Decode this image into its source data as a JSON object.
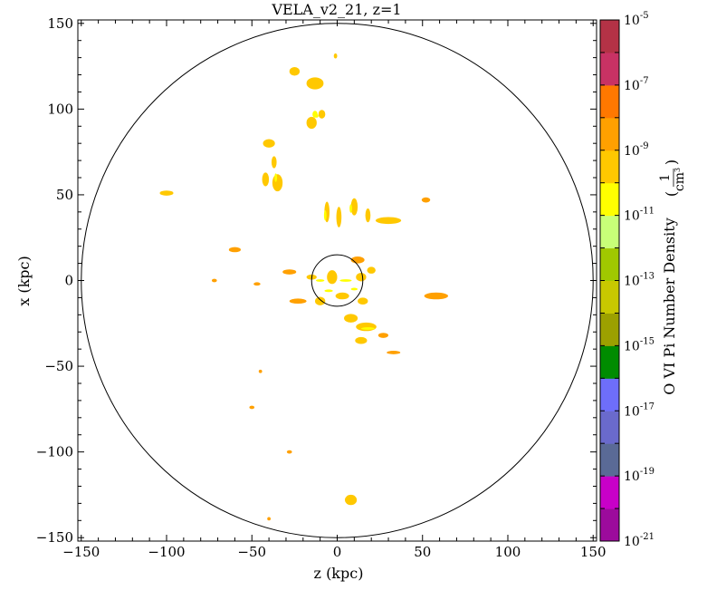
{
  "chart_data": {
    "type": "heatmap",
    "title": "VELA_v2_21, z=1",
    "xlabel": "z  (kpc)",
    "ylabel": "x  (kpc)",
    "xlim": [
      -152,
      152
    ],
    "ylim": [
      -152,
      152
    ],
    "x_ticks": [
      -150,
      -100,
      -50,
      0,
      50,
      100,
      150
    ],
    "y_ticks": [
      150,
      100,
      50,
      0,
      -50,
      -100,
      -150
    ],
    "x_tick_labels": [
      "−150",
      "−100",
      "−50",
      "0",
      "50",
      "100",
      "150"
    ],
    "y_tick_labels": [
      "150",
      "100",
      "50",
      "0",
      "−50",
      "−100",
      "−150"
    ],
    "circles_kpc": [
      {
        "name": "outer",
        "cx": 0,
        "cy": 0,
        "r": 150
      },
      {
        "name": "inner",
        "cx": 0,
        "cy": 0,
        "r": 15
      }
    ],
    "colorbar": {
      "label": "O VI Pi Number Density",
      "unit_numerator": "1",
      "unit_denominator": "cm",
      "unit_exponent": "3",
      "scale": "log",
      "range": [
        -21,
        -5
      ],
      "bands": [
        {
          "from": -21,
          "to": -20,
          "color": "#9c0b9c"
        },
        {
          "from": -20,
          "to": -19,
          "color": "#c800c8"
        },
        {
          "from": -19,
          "to": -18,
          "color": "#5a6a96"
        },
        {
          "from": -18,
          "to": -17,
          "color": "#6a6acc"
        },
        {
          "from": -17,
          "to": -16,
          "color": "#6e6efa"
        },
        {
          "from": -16,
          "to": -15,
          "color": "#008c00"
        },
        {
          "from": -15,
          "to": -14,
          "color": "#9ca000"
        },
        {
          "from": -14,
          "to": -13,
          "color": "#c8c800"
        },
        {
          "from": -13,
          "to": -12,
          "color": "#a0c800"
        },
        {
          "from": -12,
          "to": -11,
          "color": "#c8ff78"
        },
        {
          "from": -11,
          "to": -10,
          "color": "#ffff00"
        },
        {
          "from": -10,
          "to": -9,
          "color": "#ffc800"
        },
        {
          "from": -9,
          "to": -8,
          "color": "#ffa000"
        },
        {
          "from": -8,
          "to": -7,
          "color": "#ff7800"
        },
        {
          "from": -7,
          "to": -6,
          "color": "#c83264"
        },
        {
          "from": -6,
          "to": -5,
          "color": "#b43246"
        }
      ],
      "ticks": [
        {
          "base": "10",
          "exp": "-5",
          "value": -5
        },
        {
          "base": "10",
          "exp": "-7",
          "value": -7
        },
        {
          "base": "10",
          "exp": "-9",
          "value": -9
        },
        {
          "base": "10",
          "exp": "-11",
          "value": -11
        },
        {
          "base": "10",
          "exp": "-13",
          "value": -13
        },
        {
          "base": "10",
          "exp": "-15",
          "value": -15
        },
        {
          "base": "10",
          "exp": "-17",
          "value": -17
        },
        {
          "base": "10",
          "exp": "-19",
          "value": -19
        },
        {
          "base": "10",
          "exp": "-21",
          "value": -21
        }
      ]
    },
    "blobs": [
      {
        "z": -25,
        "x": 122,
        "w": 6,
        "h": 5,
        "color": "#ffc800"
      },
      {
        "z": -13,
        "x": 115,
        "w": 10,
        "h": 7,
        "color": "#ffc800"
      },
      {
        "z": -1,
        "x": 131,
        "w": 2,
        "h": 3,
        "color": "#ffc800"
      },
      {
        "z": -15,
        "x": 92,
        "w": 6,
        "h": 7,
        "color": "#ffc800"
      },
      {
        "z": -9,
        "x": 97,
        "w": 4,
        "h": 5,
        "color": "#ffc800"
      },
      {
        "z": -13,
        "x": 97,
        "w": 3,
        "h": 4,
        "color": "#ffff00"
      },
      {
        "z": -40,
        "x": 80,
        "w": 7,
        "h": 5,
        "color": "#ffc800"
      },
      {
        "z": -37,
        "x": 69,
        "w": 3,
        "h": 7,
        "color": "#ffc800"
      },
      {
        "z": -35,
        "x": 57,
        "w": 6,
        "h": 10,
        "color": "#ffc800"
      },
      {
        "z": -42,
        "x": 59,
        "w": 4,
        "h": 8,
        "color": "#ffc800"
      },
      {
        "z": -100,
        "x": 51,
        "w": 8,
        "h": 3,
        "color": "#ffc800"
      },
      {
        "z": 52,
        "x": 47,
        "w": 5,
        "h": 3,
        "color": "#ffa000"
      },
      {
        "z": -6,
        "x": 40,
        "w": 3,
        "h": 12,
        "color": "#ffc800"
      },
      {
        "z": 1,
        "x": 37,
        "w": 3,
        "h": 12,
        "color": "#ffc800"
      },
      {
        "z": 10,
        "x": 43,
        "w": 4,
        "h": 10,
        "color": "#ffc800"
      },
      {
        "z": 18,
        "x": 38,
        "w": 3,
        "h": 8,
        "color": "#ffc800"
      },
      {
        "z": 30,
        "x": 35,
        "w": 15,
        "h": 4,
        "color": "#ffc800"
      },
      {
        "z": -60,
        "x": 18,
        "w": 7,
        "h": 3,
        "color": "#ffa000"
      },
      {
        "z": -28,
        "x": 5,
        "w": 8,
        "h": 3,
        "color": "#ffa000"
      },
      {
        "z": -47,
        "x": -2,
        "w": 4,
        "h": 2,
        "color": "#ffa000"
      },
      {
        "z": -72,
        "x": 0,
        "w": 3,
        "h": 2,
        "color": "#ffa000"
      },
      {
        "z": -15,
        "x": 2,
        "w": 6,
        "h": 3,
        "color": "#ffc800"
      },
      {
        "z": -3,
        "x": 2,
        "w": 6,
        "h": 8,
        "color": "#ffc800"
      },
      {
        "z": 14,
        "x": 2,
        "w": 6,
        "h": 5,
        "color": "#ffc800"
      },
      {
        "z": 20,
        "x": 6,
        "w": 5,
        "h": 4,
        "color": "#ffc800"
      },
      {
        "z": 12,
        "x": 12,
        "w": 8,
        "h": 4,
        "color": "#ffa000"
      },
      {
        "z": -23,
        "x": -12,
        "w": 10,
        "h": 3,
        "color": "#ffa000"
      },
      {
        "z": -10,
        "x": -12,
        "w": 6,
        "h": 5,
        "color": "#ffc800"
      },
      {
        "z": 3,
        "x": -9,
        "w": 8,
        "h": 4,
        "color": "#ffc800"
      },
      {
        "z": 15,
        "x": -12,
        "w": 6,
        "h": 4,
        "color": "#ffc800"
      },
      {
        "z": 58,
        "x": -9,
        "w": 14,
        "h": 4,
        "color": "#ffa000"
      },
      {
        "z": 8,
        "x": -22,
        "w": 8,
        "h": 5,
        "color": "#ffc800"
      },
      {
        "z": 17,
        "x": -27,
        "w": 12,
        "h": 5,
        "color": "#ffc800"
      },
      {
        "z": 14,
        "x": -35,
        "w": 7,
        "h": 4,
        "color": "#ffc800"
      },
      {
        "z": 27,
        "x": -32,
        "w": 6,
        "h": 3,
        "color": "#ffa000"
      },
      {
        "z": 33,
        "x": -42,
        "w": 8,
        "h": 2,
        "color": "#ffa000"
      },
      {
        "z": -45,
        "x": -53,
        "w": 2,
        "h": 2,
        "color": "#ffa000"
      },
      {
        "z": -50,
        "x": -74,
        "w": 3,
        "h": 2,
        "color": "#ffa000"
      },
      {
        "z": -28,
        "x": -100,
        "w": 3,
        "h": 2,
        "color": "#ffa000"
      },
      {
        "z": 8,
        "x": -128,
        "w": 7,
        "h": 6,
        "color": "#ffc800"
      },
      {
        "z": -40,
        "x": -139,
        "w": 2,
        "h": 2,
        "color": "#ffa000"
      }
    ],
    "speckles": [
      {
        "z": -10,
        "x": 0,
        "w": 5,
        "h": 1.5,
        "color": "#ffff00"
      },
      {
        "z": 5,
        "x": 0,
        "w": 7,
        "h": 1.5,
        "color": "#ffff00"
      },
      {
        "z": -5,
        "x": -6,
        "w": 5,
        "h": 1.5,
        "color": "#ffff00"
      },
      {
        "z": 10,
        "x": -5,
        "w": 4,
        "h": 1.5,
        "color": "#ffff00"
      },
      {
        "z": 18,
        "x": -28,
        "w": 8,
        "h": 1.5,
        "color": "#ffff00"
      },
      {
        "z": -7,
        "x": 38,
        "w": 1.5,
        "h": 6,
        "color": "#ffff00"
      },
      {
        "z": 8,
        "x": 42,
        "w": 1.5,
        "h": 5,
        "color": "#ffff00"
      },
      {
        "z": -36,
        "x": 60,
        "w": 1.5,
        "h": 5,
        "color": "#ffff00"
      },
      {
        "z": -12,
        "x": 96,
        "w": 2,
        "h": 2,
        "color": "#ffff00"
      }
    ]
  }
}
